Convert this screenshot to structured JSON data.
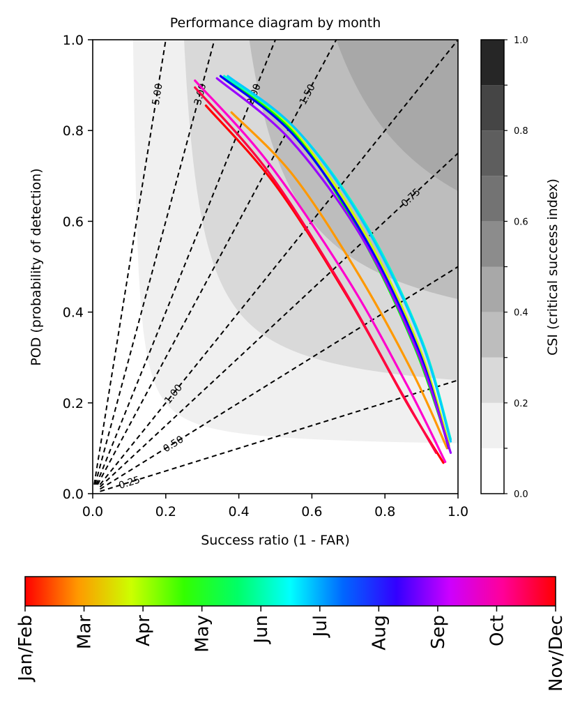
{
  "chart_data": {
    "type": "line",
    "title": "Performance diagram by month",
    "xlabel": "Success ratio (1 - FAR)",
    "ylabel": "POD (probability of detection)",
    "xlim": [
      0,
      1
    ],
    "ylim": [
      0,
      1
    ],
    "x_ticks": [
      "0.0",
      "0.2",
      "0.4",
      "0.6",
      "0.8",
      "1.0"
    ],
    "y_ticks": [
      "0.0",
      "0.2",
      "0.4",
      "0.6",
      "0.8",
      "1.0"
    ],
    "csi_colorbar": {
      "label": "CSI (critical success index)",
      "levels": [
        0,
        0.1,
        0.2,
        0.3,
        0.4,
        0.5,
        0.6,
        0.7,
        0.8,
        0.9,
        1.0
      ],
      "tick_labels": [
        "0.0",
        "0.2",
        "0.4",
        "0.6",
        "0.8",
        "1.0"
      ],
      "colors": [
        "#ffffff",
        "#f0f0f0",
        "#d9d9d9",
        "#bdbdbd",
        "#a8a8a8",
        "#8c8c8c",
        "#737373",
        "#5e5e5e",
        "#454545",
        "#262626",
        "#000000"
      ]
    },
    "frequency_bias_lines": {
      "values": [
        0.25,
        0.5,
        0.75,
        1.0,
        1.5,
        2.0,
        3.0,
        5.0
      ],
      "labels": [
        "0.25",
        "0.50",
        "0.75",
        "1.00",
        "1.50",
        "2.00",
        "3.00",
        "5.00"
      ],
      "style": "dashed"
    },
    "series": [
      {
        "name": "Jan/Feb",
        "color": "#ff0000",
        "points": [
          [
            0.31,
            0.855
          ],
          [
            0.5,
            0.68
          ],
          [
            0.7,
            0.43
          ],
          [
            0.86,
            0.2
          ],
          [
            0.96,
            0.068
          ]
        ]
      },
      {
        "name": "Mar",
        "color": "#ff9900",
        "points": [
          [
            0.38,
            0.84
          ],
          [
            0.55,
            0.7
          ],
          [
            0.73,
            0.48
          ],
          [
            0.88,
            0.26
          ],
          [
            0.97,
            0.1
          ]
        ]
      },
      {
        "name": "Apr",
        "color": "#ccff00",
        "points": [
          [
            0.365,
            0.915
          ],
          [
            0.55,
            0.8
          ],
          [
            0.74,
            0.58
          ],
          [
            0.89,
            0.33
          ],
          [
            0.975,
            0.11
          ]
        ]
      },
      {
        "name": "May",
        "color": "#00ff00",
        "points": [
          [
            0.36,
            0.915
          ],
          [
            0.55,
            0.795
          ],
          [
            0.73,
            0.575
          ],
          [
            0.88,
            0.325
          ],
          [
            0.975,
            0.105
          ]
        ]
      },
      {
        "name": "Jun",
        "color": "#00ffcc",
        "points": [
          [
            0.36,
            0.92
          ],
          [
            0.56,
            0.8
          ],
          [
            0.75,
            0.59
          ],
          [
            0.9,
            0.34
          ],
          [
            0.98,
            0.12
          ]
        ]
      },
      {
        "name": "Jul",
        "color": "#00ccff",
        "points": [
          [
            0.37,
            0.92
          ],
          [
            0.56,
            0.8
          ],
          [
            0.75,
            0.585
          ],
          [
            0.9,
            0.335
          ],
          [
            0.98,
            0.115
          ]
        ]
      },
      {
        "name": "Aug",
        "color": "#0000ff",
        "points": [
          [
            0.35,
            0.92
          ],
          [
            0.55,
            0.79
          ],
          [
            0.74,
            0.57
          ],
          [
            0.89,
            0.32
          ],
          [
            0.975,
            0.1
          ]
        ]
      },
      {
        "name": "Sep",
        "color": "#9900ff",
        "points": [
          [
            0.34,
            0.915
          ],
          [
            0.54,
            0.78
          ],
          [
            0.74,
            0.56
          ],
          [
            0.89,
            0.31
          ],
          [
            0.98,
            0.09
          ]
        ]
      },
      {
        "name": "Oct",
        "color": "#ff00cc",
        "points": [
          [
            0.28,
            0.91
          ],
          [
            0.48,
            0.73
          ],
          [
            0.7,
            0.47
          ],
          [
            0.86,
            0.24
          ],
          [
            0.965,
            0.07
          ]
        ]
      },
      {
        "name": "Nov/Dec",
        "color": "#ff0044",
        "points": [
          [
            0.28,
            0.895
          ],
          [
            0.48,
            0.71
          ],
          [
            0.68,
            0.46
          ],
          [
            0.84,
            0.23
          ],
          [
            0.94,
            0.09
          ]
        ]
      }
    ],
    "month_colorbar": {
      "labels": [
        "Jan/Feb",
        "Mar",
        "Apr",
        "May",
        "Jun",
        "Jul",
        "Aug",
        "Sep",
        "Oct",
        "Nov/Dec"
      ],
      "colors": [
        "#ff0000",
        "#ff9900",
        "#ccff00",
        "#33ff00",
        "#00ff66",
        "#00ffff",
        "#0066ff",
        "#3300ff",
        "#cc00ff",
        "#ff0099",
        "#ff0000"
      ]
    },
    "grid": false
  }
}
